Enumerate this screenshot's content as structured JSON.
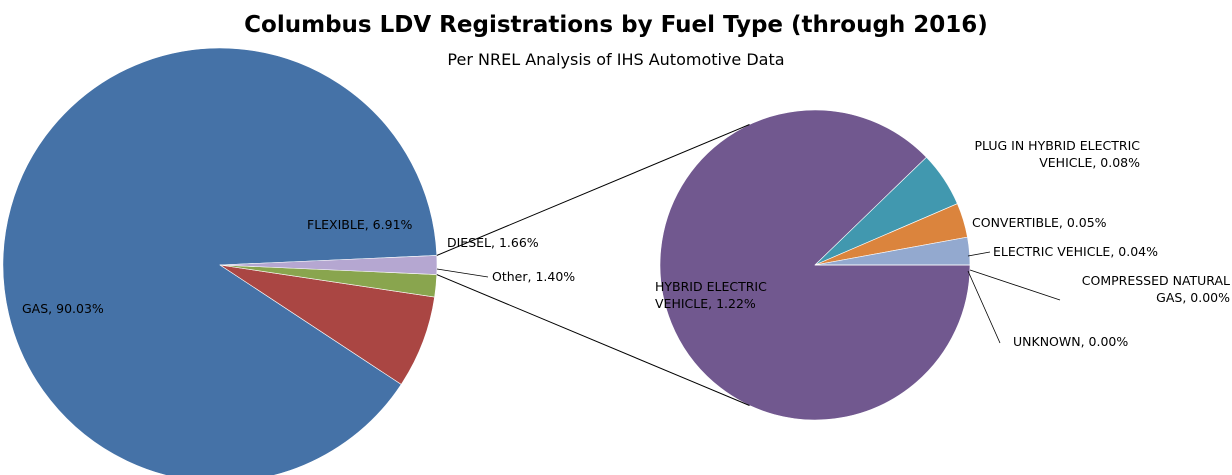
{
  "chart_data": {
    "type": "pie-of-pie",
    "title": "Columbus LDV Registrations by Fuel Type (through 2016)",
    "subtitle": "Per NREL Analysis of IHS Automotive Data",
    "pies": [
      {
        "values": [
          90.03,
          6.91,
          1.66,
          1.4
        ],
        "value_labels": [
          "GAS, 90.03%",
          "FLEXIBLE, 6.91%",
          "DIESEL, 1.66%",
          "Other, 1.40%"
        ],
        "colors": [
          "#4572a7",
          "#aa4643",
          "#89a54e",
          "#b5a7d1"
        ]
      },
      {
        "values": [
          1.22,
          0.08,
          0.05,
          0.04,
          0.0,
          0.0
        ],
        "value_labels": [
          "HYBRID ELECTRIC VEHICLE, 1.22%",
          "PLUG IN HYBRID ELECTRIC VEHICLE, 0.08%",
          "CONVERTIBLE, 0.05%",
          "ELECTRIC VEHICLE, 0.04%",
          "COMPRESSED NATURAL GAS, 0.00%",
          "UNKNOWN, 0.00%"
        ],
        "colors": [
          "#71588f",
          "#4198af",
          "#db843d",
          "#93a9cf",
          "#b9cd96",
          "#a99bbd"
        ]
      }
    ]
  }
}
